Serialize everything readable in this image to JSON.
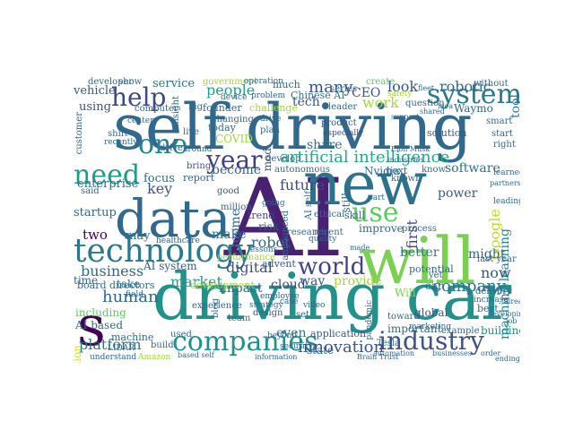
{
  "cloud": {
    "words": [
      {
        "text": "self driving",
        "color": "#31688e"
      },
      {
        "text": "driving car",
        "color": "#21918c"
      },
      {
        "text": "AI",
        "color": "#482173"
      },
      {
        "text": "new",
        "color": "#2c728e"
      },
      {
        "text": "will",
        "color": "#7ad151"
      },
      {
        "text": "data",
        "color": "#31688e"
      },
      {
        "text": "technology",
        "color": "#2a788e"
      },
      {
        "text": "companies",
        "color": "#21918c"
      },
      {
        "text": "industry",
        "color": "#3b528b"
      },
      {
        "text": "system",
        "color": "#2a788e"
      },
      {
        "text": "help",
        "color": "#3e4989"
      },
      {
        "text": "need",
        "color": "#1f9e89"
      },
      {
        "text": "one",
        "color": "#26828e"
      },
      {
        "text": "year",
        "color": "#433e85"
      },
      {
        "text": "use",
        "color": "#5ec962"
      },
      {
        "text": "world",
        "color": "#414487"
      },
      {
        "text": "artificial intelligence",
        "color": "#25ab82"
      },
      {
        "text": "s",
        "color": "#440154"
      },
      {
        "text": "company",
        "color": "#2c728e"
      },
      {
        "text": "innovation",
        "color": "#3b528b"
      },
      {
        "text": "business",
        "color": "#31688e"
      },
      {
        "text": "platform",
        "color": "#2a788e"
      },
      {
        "text": "robot",
        "color": "#31688e"
      },
      {
        "text": "people",
        "color": "#1f9e89"
      },
      {
        "text": "machine learning",
        "color": "#26828e"
      },
      {
        "text": "many",
        "color": "#3b528b"
      },
      {
        "text": "software",
        "color": "#2c728e"
      },
      {
        "text": "future",
        "color": "#3e4989"
      },
      {
        "text": "tech",
        "color": "#38588c"
      },
      {
        "text": "work",
        "color": "#a0da39"
      },
      {
        "text": "human",
        "color": "#31688e"
      },
      {
        "text": "digital",
        "color": "#3b528b"
      },
      {
        "text": "market",
        "color": "#1f9e89"
      },
      {
        "text": "make",
        "color": "#2a788e"
      },
      {
        "text": "robotic",
        "color": "#31688e"
      },
      {
        "text": "tool",
        "color": "#2a788e"
      },
      {
        "text": "look",
        "color": "#3b528b"
      },
      {
        "text": "service",
        "color": "#2c728e"
      },
      {
        "text": "vehicle",
        "color": "#38588c"
      },
      {
        "text": "using",
        "color": "#3b528b"
      },
      {
        "text": "enterprise",
        "color": "#31688e"
      },
      {
        "text": "key",
        "color": "#3b528b"
      },
      {
        "text": "two",
        "color": "#440154"
      },
      {
        "text": "startup",
        "color": "#31688e"
      },
      {
        "text": "Google",
        "color": "#bddf26"
      },
      {
        "text": "first",
        "color": "#3e4989"
      },
      {
        "text": "now",
        "color": "#38588c"
      },
      {
        "text": "might",
        "color": "#31688e"
      },
      {
        "text": "impact",
        "color": "#31688e"
      },
      {
        "text": "way",
        "color": "#3b528b"
      },
      {
        "text": "organization",
        "color": "#d8e219"
      },
      {
        "text": "Will",
        "color": "#7ad151"
      },
      {
        "text": "power",
        "color": "#38588c"
      },
      {
        "text": "better",
        "color": "#2a788e"
      },
      {
        "text": "cloud",
        "color": "#3e4989"
      },
      {
        "text": "provide",
        "color": "#a0da39"
      },
      {
        "text": "improve",
        "color": "#31688e"
      },
      {
        "text": "potential",
        "color": "#31688e"
      },
      {
        "text": "become",
        "color": "#31688e"
      },
      {
        "text": "focus",
        "color": "#31688e"
      },
      {
        "text": "board directors",
        "color": "#31688e"
      },
      {
        "text": "AI system",
        "color": "#38588c"
      },
      {
        "text": "time",
        "color": "#31688e"
      },
      {
        "text": "take",
        "color": "#2c728e"
      },
      {
        "text": "come",
        "color": "#31688e"
      },
      {
        "text": "risk",
        "color": "#3b528b"
      },
      {
        "text": "including",
        "color": "#5ec962"
      },
      {
        "text": "AI based",
        "color": "#31688e"
      },
      {
        "text": "development",
        "color": "#a0da39"
      },
      {
        "text": "even",
        "color": "#2a788e"
      },
      {
        "text": "application",
        "color": "#38588c"
      },
      {
        "text": "machine",
        "color": "#31688e"
      },
      {
        "text": "trend",
        "color": "#433e85"
      },
      {
        "text": "may",
        "color": "#2c728e"
      },
      {
        "text": "challenge",
        "color": "#a0da39"
      },
      {
        "text": "founder",
        "color": "#31688e"
      },
      {
        "text": "develop",
        "color": "#31688e"
      },
      {
        "text": "Chinese AI",
        "color": "#2c728e"
      },
      {
        "text": "share",
        "color": "#2c728e"
      },
      {
        "text": "autonomous",
        "color": "#31688e"
      },
      {
        "text": "product",
        "color": "#38588c"
      },
      {
        "text": "especially",
        "color": "#3b528b"
      },
      {
        "text": "Nvidia",
        "color": "#31688e"
      },
      {
        "text": "next",
        "color": "#31688e"
      },
      {
        "text": "solution",
        "color": "#38588c"
      },
      {
        "text": "CEO",
        "color": "#3b528b"
      },
      {
        "text": "series",
        "color": "#2c728e"
      },
      {
        "text": "create",
        "color": "#5ec962"
      },
      {
        "text": "question",
        "color": "#31688e"
      },
      {
        "text": "Waymo",
        "color": "#31688e"
      },
      {
        "text": "best",
        "color": "#31688e"
      },
      {
        "text": "building",
        "color": "#21918c"
      },
      {
        "text": "global",
        "color": "#38588c"
      },
      {
        "text": "toward",
        "color": "#31688e"
      },
      {
        "text": "Tesla",
        "color": "#31688e"
      },
      {
        "text": "delivery",
        "color": "#31688e"
      },
      {
        "text": "last year",
        "color": "#31688e"
      },
      {
        "text": "COVID",
        "color": "#a0da39"
      },
      {
        "text": "today",
        "color": "#31688e"
      },
      {
        "text": "report",
        "color": "#31688e"
      },
      {
        "text": "bring",
        "color": "#3b528b"
      },
      {
        "text": "healthcare",
        "color": "#38588c"
      },
      {
        "text": "million",
        "color": "#31688e"
      },
      {
        "text": "good",
        "color": "#3b528b"
      },
      {
        "text": "state",
        "color": "#31688e"
      },
      {
        "text": "research",
        "color": "#31688e"
      },
      {
        "text": "recent",
        "color": "#31688e"
      },
      {
        "text": "example",
        "color": "#31688e"
      },
      {
        "text": "important",
        "color": "#31688e"
      },
      {
        "text": "process",
        "color": "#31688e"
      },
      {
        "text": "yet",
        "color": "#31688e"
      },
      {
        "text": "still",
        "color": "#31688e"
      },
      {
        "text": "skill",
        "color": "#31688e"
      },
      {
        "text": "known",
        "color": "#31688e"
      },
      {
        "text": "know",
        "color": "#2c728e"
      },
      {
        "text": "performance",
        "color": "#a0da39"
      },
      {
        "text": "advent",
        "color": "#38588c"
      },
      {
        "text": "team",
        "color": "#31688e"
      },
      {
        "text": "experience",
        "color": "#31688e"
      },
      {
        "text": "design",
        "color": "#38588c"
      },
      {
        "text": "set",
        "color": "#31688e"
      },
      {
        "text": "customer",
        "color": "#31688e"
      },
      {
        "text": "LIDAR",
        "color": "#31688e"
      },
      {
        "text": "understand",
        "color": "#31688e"
      },
      {
        "text": "build",
        "color": "#31688e"
      },
      {
        "text": "government",
        "color": "#a0da39"
      },
      {
        "text": "developer",
        "color": "#31688e"
      },
      {
        "text": "show",
        "color": "#31688e"
      },
      {
        "text": "computer",
        "color": "#31688e"
      },
      {
        "text": "center",
        "color": "#31688e"
      },
      {
        "text": "much",
        "color": "#31688e"
      },
      {
        "text": "leader",
        "color": "#31688e"
      },
      {
        "text": "without",
        "color": "#31688e"
      },
      {
        "text": "safety",
        "color": "#a0da39"
      },
      {
        "text": "smart",
        "color": "#31688e"
      },
      {
        "text": "start",
        "color": "#31688e"
      },
      {
        "text": "right",
        "color": "#31688e"
      },
      {
        "text": "learned",
        "color": "#31688e"
      },
      {
        "text": "leading",
        "color": "#31688e"
      },
      {
        "text": "partnership",
        "color": "#31688e"
      },
      {
        "text": "big",
        "color": "#31688e"
      },
      {
        "text": "live",
        "color": "#31688e"
      },
      {
        "text": "driver",
        "color": "#31688e"
      },
      {
        "text": "around",
        "color": "#31688e"
      },
      {
        "text": "insight",
        "color": "#31688e"
      },
      {
        "text": "changing",
        "color": "#31688e"
      },
      {
        "text": "plan",
        "color": "#31688e"
      },
      {
        "text": "drive",
        "color": "#31688e"
      },
      {
        "text": "operation",
        "color": "#31688e"
      },
      {
        "text": "problem",
        "color": "#31688e"
      },
      {
        "text": "device",
        "color": "#31688e"
      },
      {
        "text": "mod",
        "color": "#3b528b"
      },
      {
        "text": "AI self",
        "color": "#31688e"
      },
      {
        "text": "recently",
        "color": "#31688e"
      },
      {
        "text": "shift",
        "color": "#31688e"
      },
      {
        "text": "said",
        "color": "#31688e"
      },
      {
        "text": "ethical",
        "color": "#31688e"
      },
      {
        "text": "announced",
        "color": "#31688e"
      },
      {
        "text": "quality",
        "color": "#31688e"
      },
      {
        "text": "pandemic",
        "color": "#31688e"
      },
      {
        "text": "increase",
        "color": "#31688e"
      },
      {
        "text": "marketing",
        "color": "#31688e"
      },
      {
        "text": "businesses",
        "color": "#31688e"
      },
      {
        "text": "automation",
        "color": "#31688e"
      },
      {
        "text": "Brain Trust",
        "color": "#31688e"
      },
      {
        "text": "information",
        "color": "#31688e"
      },
      {
        "text": "security",
        "color": "#31688e"
      },
      {
        "text": "video",
        "color": "#31688e"
      },
      {
        "text": "beyond",
        "color": "#31688e"
      },
      {
        "text": "strategy",
        "color": "#31688e"
      },
      {
        "text": "employee",
        "color": "#31688e"
      },
      {
        "text": "based self",
        "color": "#31688e"
      },
      {
        "text": "field",
        "color": "#31688e"
      },
      {
        "text": "Amazon",
        "color": "#a0da39"
      },
      {
        "text": "lessons",
        "color": "#31688e"
      },
      {
        "text": "going",
        "color": "#31688e"
      },
      {
        "text": "part",
        "color": "#31688e"
      },
      {
        "text": "car",
        "color": "#31688e"
      },
      {
        "text": "blog",
        "color": "#31688e"
      },
      {
        "text": "case",
        "color": "#31688e"
      },
      {
        "text": "used",
        "color": "#31688e"
      },
      {
        "text": "made",
        "color": "#31688e"
      },
      {
        "text": "idea",
        "color": "#31688e"
      },
      {
        "text": "Elon Musk",
        "color": "#31688e"
      },
      {
        "text": "industries",
        "color": "#31688e"
      },
      {
        "text": "support",
        "color": "#31688e"
      },
      {
        "text": "shared",
        "color": "#31688e"
      },
      {
        "text": "fleet",
        "color": "#31688e"
      },
      {
        "text": "job",
        "color": "#31688e"
      },
      {
        "text": "order",
        "color": "#31688e"
      },
      {
        "text": "ending",
        "color": "#31688e"
      },
      {
        "text": "already",
        "color": "#31688e"
      },
      {
        "text": "developing",
        "color": "#31688e"
      }
    ]
  }
}
